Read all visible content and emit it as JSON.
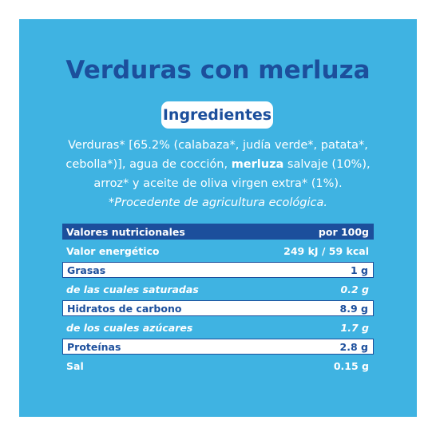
{
  "title": "Verduras con merluza",
  "ingredients_heading": "Ingredientes",
  "ingredients": {
    "line1": "Verduras* [65.2% (calabaza*, judía verde*, patata*,",
    "line2_pre": "cebolla*)], agua de cocción, ",
    "line2_strong": "merluza",
    "line2_post": " salvaje (10%),",
    "line3": "arroz* y aceite de oliva virgen extra* (1%).",
    "note": "*Procedente de agricultura ecológica."
  },
  "nutrition": {
    "header_label": "Valores nutricionales",
    "header_unit": "por 100g",
    "rows": [
      {
        "label": "Valor energético",
        "value": "249 kJ / 59 kcal"
      },
      {
        "label": "Grasas",
        "value": "1 g"
      },
      {
        "label": "de las cuales saturadas",
        "value": "0.2 g"
      },
      {
        "label": "Hidratos de carbono",
        "value": "8.9 g"
      },
      {
        "label": "de los cuales azúcares",
        "value": "1.7 g"
      },
      {
        "label": "Proteínas",
        "value": "2.8 g"
      },
      {
        "label": "Sal",
        "value": "0.15 g"
      }
    ]
  },
  "colors": {
    "background": "#3fb3e2",
    "dark_blue": "#1c4f9c",
    "white": "#ffffff"
  }
}
